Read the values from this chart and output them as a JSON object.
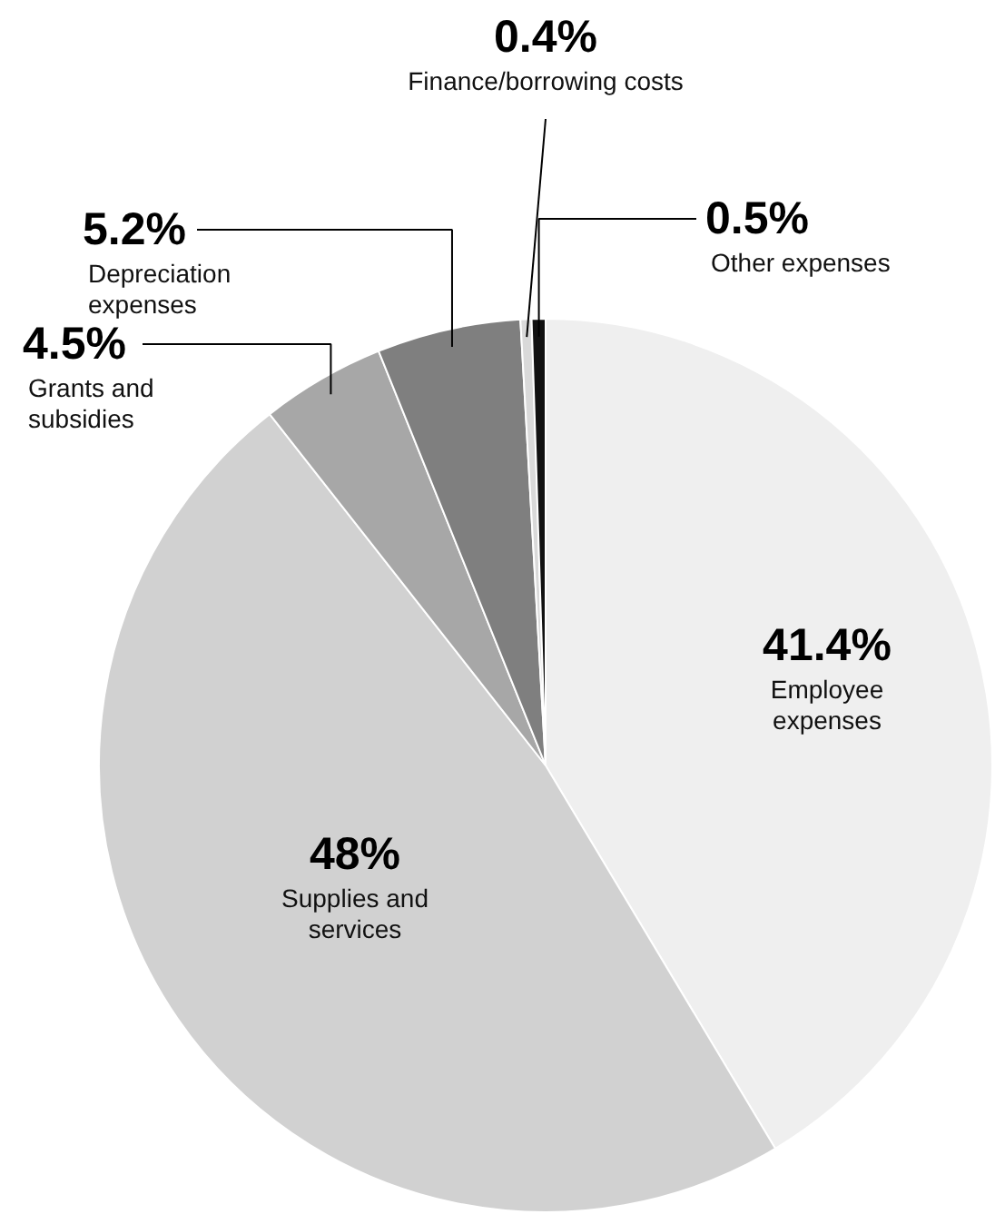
{
  "chart_data": {
    "type": "pie",
    "categories": [
      "Employee expenses",
      "Supplies and services",
      "Grants and subsidies",
      "Depreciation expenses",
      "Finance/borrowing costs",
      "Other expenses"
    ],
    "values": [
      41.4,
      48,
      4.5,
      5.2,
      0.4,
      0.5
    ],
    "value_labels": [
      "41.4%",
      "48%",
      "4.5%",
      "5.2%",
      "0.4%",
      "0.5%"
    ],
    "colors": [
      "#efefef",
      "#d1d1d1",
      "#a7a7a7",
      "#7f7f7f",
      "#d9d9d9",
      "#111111"
    ]
  }
}
